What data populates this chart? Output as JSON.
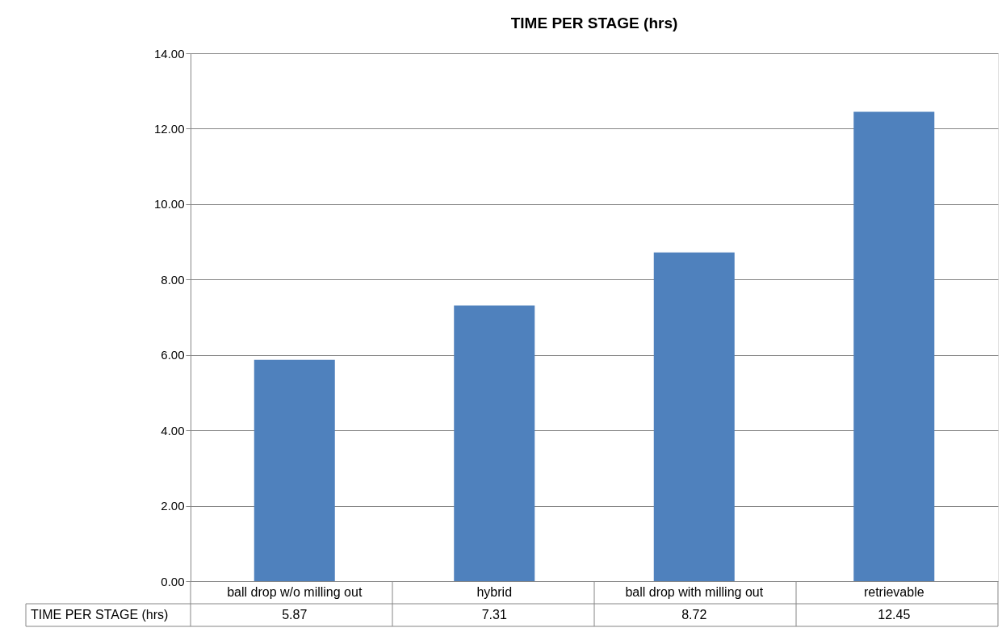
{
  "chart_data": {
    "type": "bar",
    "title": "TIME PER STAGE (hrs)",
    "categories": [
      "ball drop w/o milling out",
      "hybrid",
      "ball drop with milling out",
      "retrievable"
    ],
    "series": [
      {
        "name": "TIME PER STAGE (hrs)",
        "color": "#4f81bd",
        "values": [
          5.87,
          7.31,
          8.72,
          12.45
        ]
      }
    ],
    "ylim": [
      0,
      14
    ],
    "yticks": [
      {
        "value": 0,
        "label": "0.00"
      },
      {
        "value": 2,
        "label": "2.00"
      },
      {
        "value": 4,
        "label": "4.00"
      },
      {
        "value": 6,
        "label": "6.00"
      },
      {
        "value": 8,
        "label": "8.00"
      },
      {
        "value": 10,
        "label": "10.00"
      },
      {
        "value": 12,
        "label": "12.00"
      },
      {
        "value": 14,
        "label": "14.00"
      }
    ],
    "grid": "y",
    "data_labels": true
  }
}
